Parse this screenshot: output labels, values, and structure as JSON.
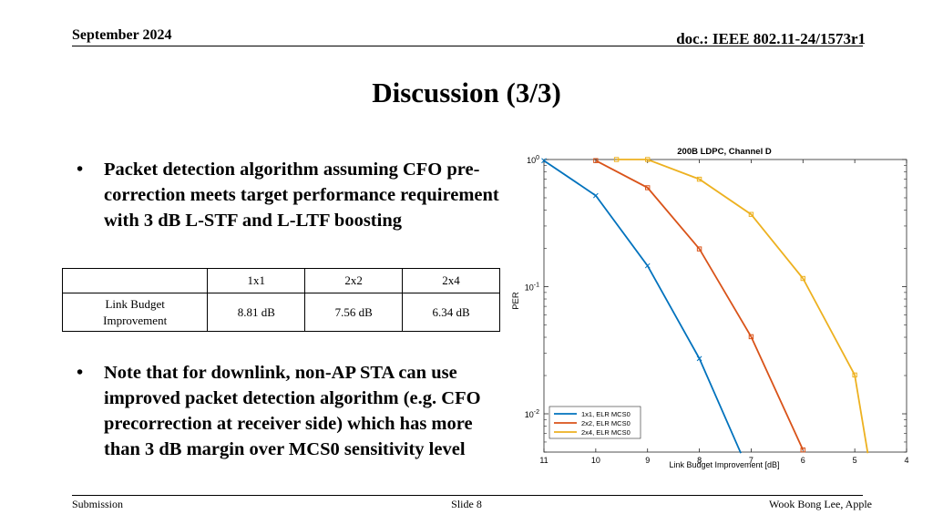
{
  "header": {
    "date": "September 2024",
    "doc": "doc.: IEEE 802.11-24/1573r1"
  },
  "slide_title": "Discussion (3/3)",
  "bullets": [
    "Packet detection algorithm assuming CFO pre-correction meets target performance requirement with 3 dB L-STF and L-LTF boosting",
    "Note that for downlink, non-AP STA can use improved packet detection algorithm (e.g. CFO precorrection at receiver side) which has more than 3 dB margin over MCS0 sensitivity level"
  ],
  "bullet_symbol": "•",
  "table": {
    "headers": [
      "",
      "1x1",
      "2x2",
      "2x4"
    ],
    "row_label": "Link Budget Improvement",
    "values": [
      "8.81 dB",
      "7.56 dB",
      "6.34 dB"
    ]
  },
  "footer": {
    "left": "Submission",
    "center": "Slide 8",
    "right": "Wook Bong Lee, Apple"
  },
  "chart_data": {
    "type": "line",
    "title": "200B LDPC, Channel D",
    "xlabel": "Link Budget Improvement [dB]",
    "ylabel": "PER",
    "xlim": [
      4,
      11
    ],
    "x_reversed": true,
    "ylim": [
      0.005,
      1
    ],
    "yscale": "log",
    "x_ticks": [
      "11",
      "10",
      "9",
      "8",
      "7",
      "6",
      "5",
      "4"
    ],
    "y_ticks": [
      {
        "value": 1,
        "base": "10",
        "exp": "0"
      },
      {
        "value": 0.1,
        "base": "10",
        "exp": "-1"
      },
      {
        "value": 0.01,
        "base": "10",
        "exp": "-2"
      }
    ],
    "grid": false,
    "legend_position": "bottom-left",
    "series": [
      {
        "name": "1x1, ELR MCS0",
        "color": "#0072BD",
        "x": [
          11,
          10,
          9,
          8,
          7.2
        ],
        "y": [
          0.98,
          0.52,
          0.146,
          0.0272,
          0.0049
        ]
      },
      {
        "name": "2x2, ELR MCS0",
        "color": "#D95319",
        "x": [
          10,
          9,
          8,
          7,
          6
        ],
        "y": [
          0.98,
          0.6,
          0.198,
          0.0404,
          0.0052
        ]
      },
      {
        "name": "2x4, ELR MCS0",
        "color": "#EDB120",
        "x": [
          9.6,
          9,
          8,
          7,
          6,
          5,
          4.75
        ],
        "y": [
          1.0,
          1.0,
          0.7,
          0.37,
          0.116,
          0.0202,
          0.0049
        ]
      }
    ]
  }
}
